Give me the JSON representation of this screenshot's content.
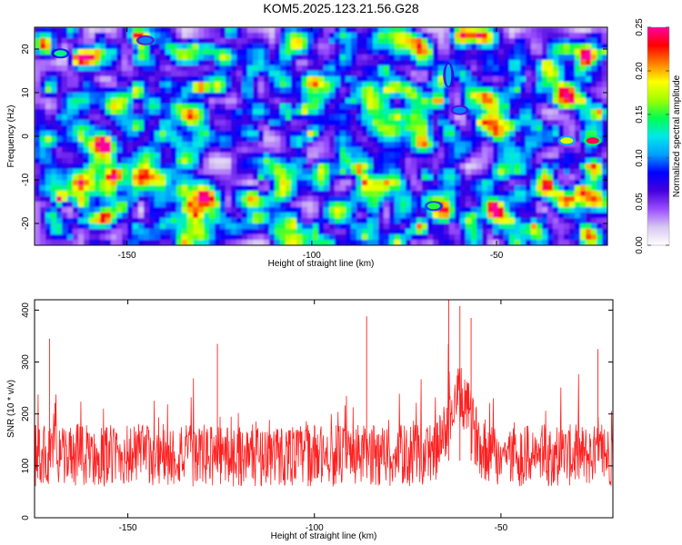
{
  "figure_title": "KOM5.2025.123.21.56.G28",
  "chart_data": [
    {
      "type": "heatmap",
      "xlabel": "Height of straight line (km)",
      "ylabel": "Frequency (Hz)",
      "xlim": [
        -175,
        -20
      ],
      "ylim": [
        -25,
        25
      ],
      "x_ticks": [
        -150,
        -100,
        -50
      ],
      "x_tick_labels": [
        "-150",
        "-100",
        "-50"
      ],
      "y_ticks": [
        -20,
        -10,
        0,
        10,
        20
      ],
      "y_tick_labels": [
        "-20",
        "-10",
        "0",
        "10",
        "20"
      ],
      "colorbar": {
        "label": "Normalized spectral amplitude",
        "range": [
          0,
          0.25
        ],
        "ticks": [
          0,
          0.05,
          0.1,
          0.15,
          0.2,
          0.25
        ],
        "tick_labels": [
          "0.00",
          "0.05",
          "0.10",
          "0.15",
          "0.20",
          "0.25"
        ],
        "colors": [
          "#ffffff",
          "#d8c8f0",
          "#9a4dff",
          "#4400dd",
          "#0000ff",
          "#00a0ff",
          "#00e8e8",
          "#00ff50",
          "#a0ff00",
          "#ffff00",
          "#ff8000",
          "#ff0000",
          "#ff00a0"
        ]
      },
      "features": [
        {
          "x": -63,
          "y": 14,
          "amplitude": 0.11
        },
        {
          "x": -60,
          "y": 6,
          "amplitude": 0.1
        },
        {
          "x": -31,
          "y": -1,
          "amplitude": 0.18
        },
        {
          "x": -24,
          "y": -1,
          "amplitude": 0.24
        },
        {
          "x": -67,
          "y": -16,
          "amplitude": 0.15
        },
        {
          "x": -168,
          "y": 19,
          "amplitude": 0.14
        },
        {
          "x": -145,
          "y": 22,
          "amplitude": 0.1
        }
      ],
      "grid": false
    },
    {
      "type": "line",
      "xlabel": "Height of straight line (km)",
      "ylabel": "SNR (10 * v/v)",
      "xlim": [
        -175,
        -20
      ],
      "ylim": [
        0,
        420
      ],
      "x_ticks": [
        -150,
        -100,
        -50
      ],
      "x_tick_labels": [
        "-150",
        "-100",
        "-50"
      ],
      "y_ticks": [
        0,
        100,
        200,
        300,
        400
      ],
      "y_tick_labels": [
        "0",
        "100",
        "200",
        "300",
        "400"
      ],
      "color": "#ff2020",
      "baseline_level": 120,
      "peak_spikes": [
        {
          "x": -171,
          "y": 345
        },
        {
          "x": -126,
          "y": 335
        },
        {
          "x": -86,
          "y": 388
        },
        {
          "x": -64,
          "y": 420
        },
        {
          "x": -61,
          "y": 408
        },
        {
          "x": -58,
          "y": 385
        },
        {
          "x": -24,
          "y": 325
        }
      ],
      "grid": false
    }
  ]
}
